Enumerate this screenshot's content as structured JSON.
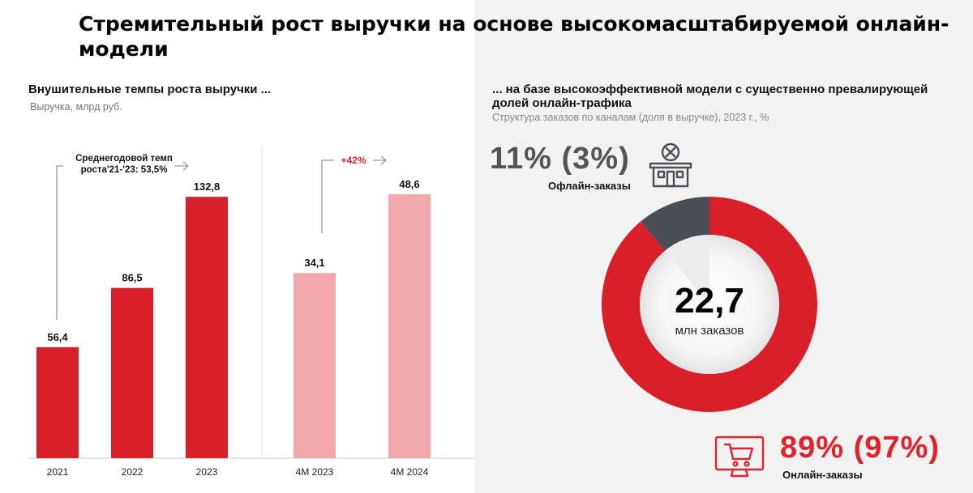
{
  "title": "Стремительный рост выручки на основе высокомасштабируемой онлайн-модели",
  "left_panel": {
    "heading": "Внушительные темпы роста выручки ...",
    "subheading": "Выручка, млрд руб.",
    "cagr_note": "Среднегодовой темп роста'21-'23: 53,5%"
  },
  "right_panel": {
    "heading": "... на базе высокоэффективной модели с существенно превалирующей долей онлайн-трафика",
    "subheading": "Структура заказов по каналам (доля в выручке), 2023 г., %",
    "offline": {
      "pct": "11% (3%)",
      "label": "Офлайн-заказы"
    },
    "online": {
      "pct": "89% (97%)",
      "label": "Онлайн-заказы"
    },
    "center_value": "22,7",
    "center_unit": "млн заказов"
  },
  "colors": {
    "red": "#d9202a",
    "pink": "#f2a7aa",
    "dark_gray": "#4a4f55",
    "accent_text": "#e0232b"
  },
  "chart_data": [
    {
      "type": "bar",
      "categories": [
        "2021",
        "2022",
        "2023"
      ],
      "values": [
        56.4,
        86.5,
        132.8
      ],
      "value_labels": [
        "56,4",
        "86,5",
        "132,8"
      ],
      "ylim": [
        0,
        160
      ],
      "color": "#d9202a"
    },
    {
      "type": "bar",
      "categories": [
        "4M 2023",
        "4M 2024"
      ],
      "values": [
        34.1,
        48.6
      ],
      "value_labels": [
        "34,1",
        "48,6"
      ],
      "growth_label": "+42%",
      "ylim": [
        0,
        55
      ],
      "color": "#f2a7aa"
    },
    {
      "type": "pie",
      "labels": [
        "Онлайн-заказы",
        "Офлайн-заказы"
      ],
      "values": [
        89,
        11
      ],
      "colors": [
        "#d9202a",
        "#4a4f55"
      ]
    }
  ]
}
